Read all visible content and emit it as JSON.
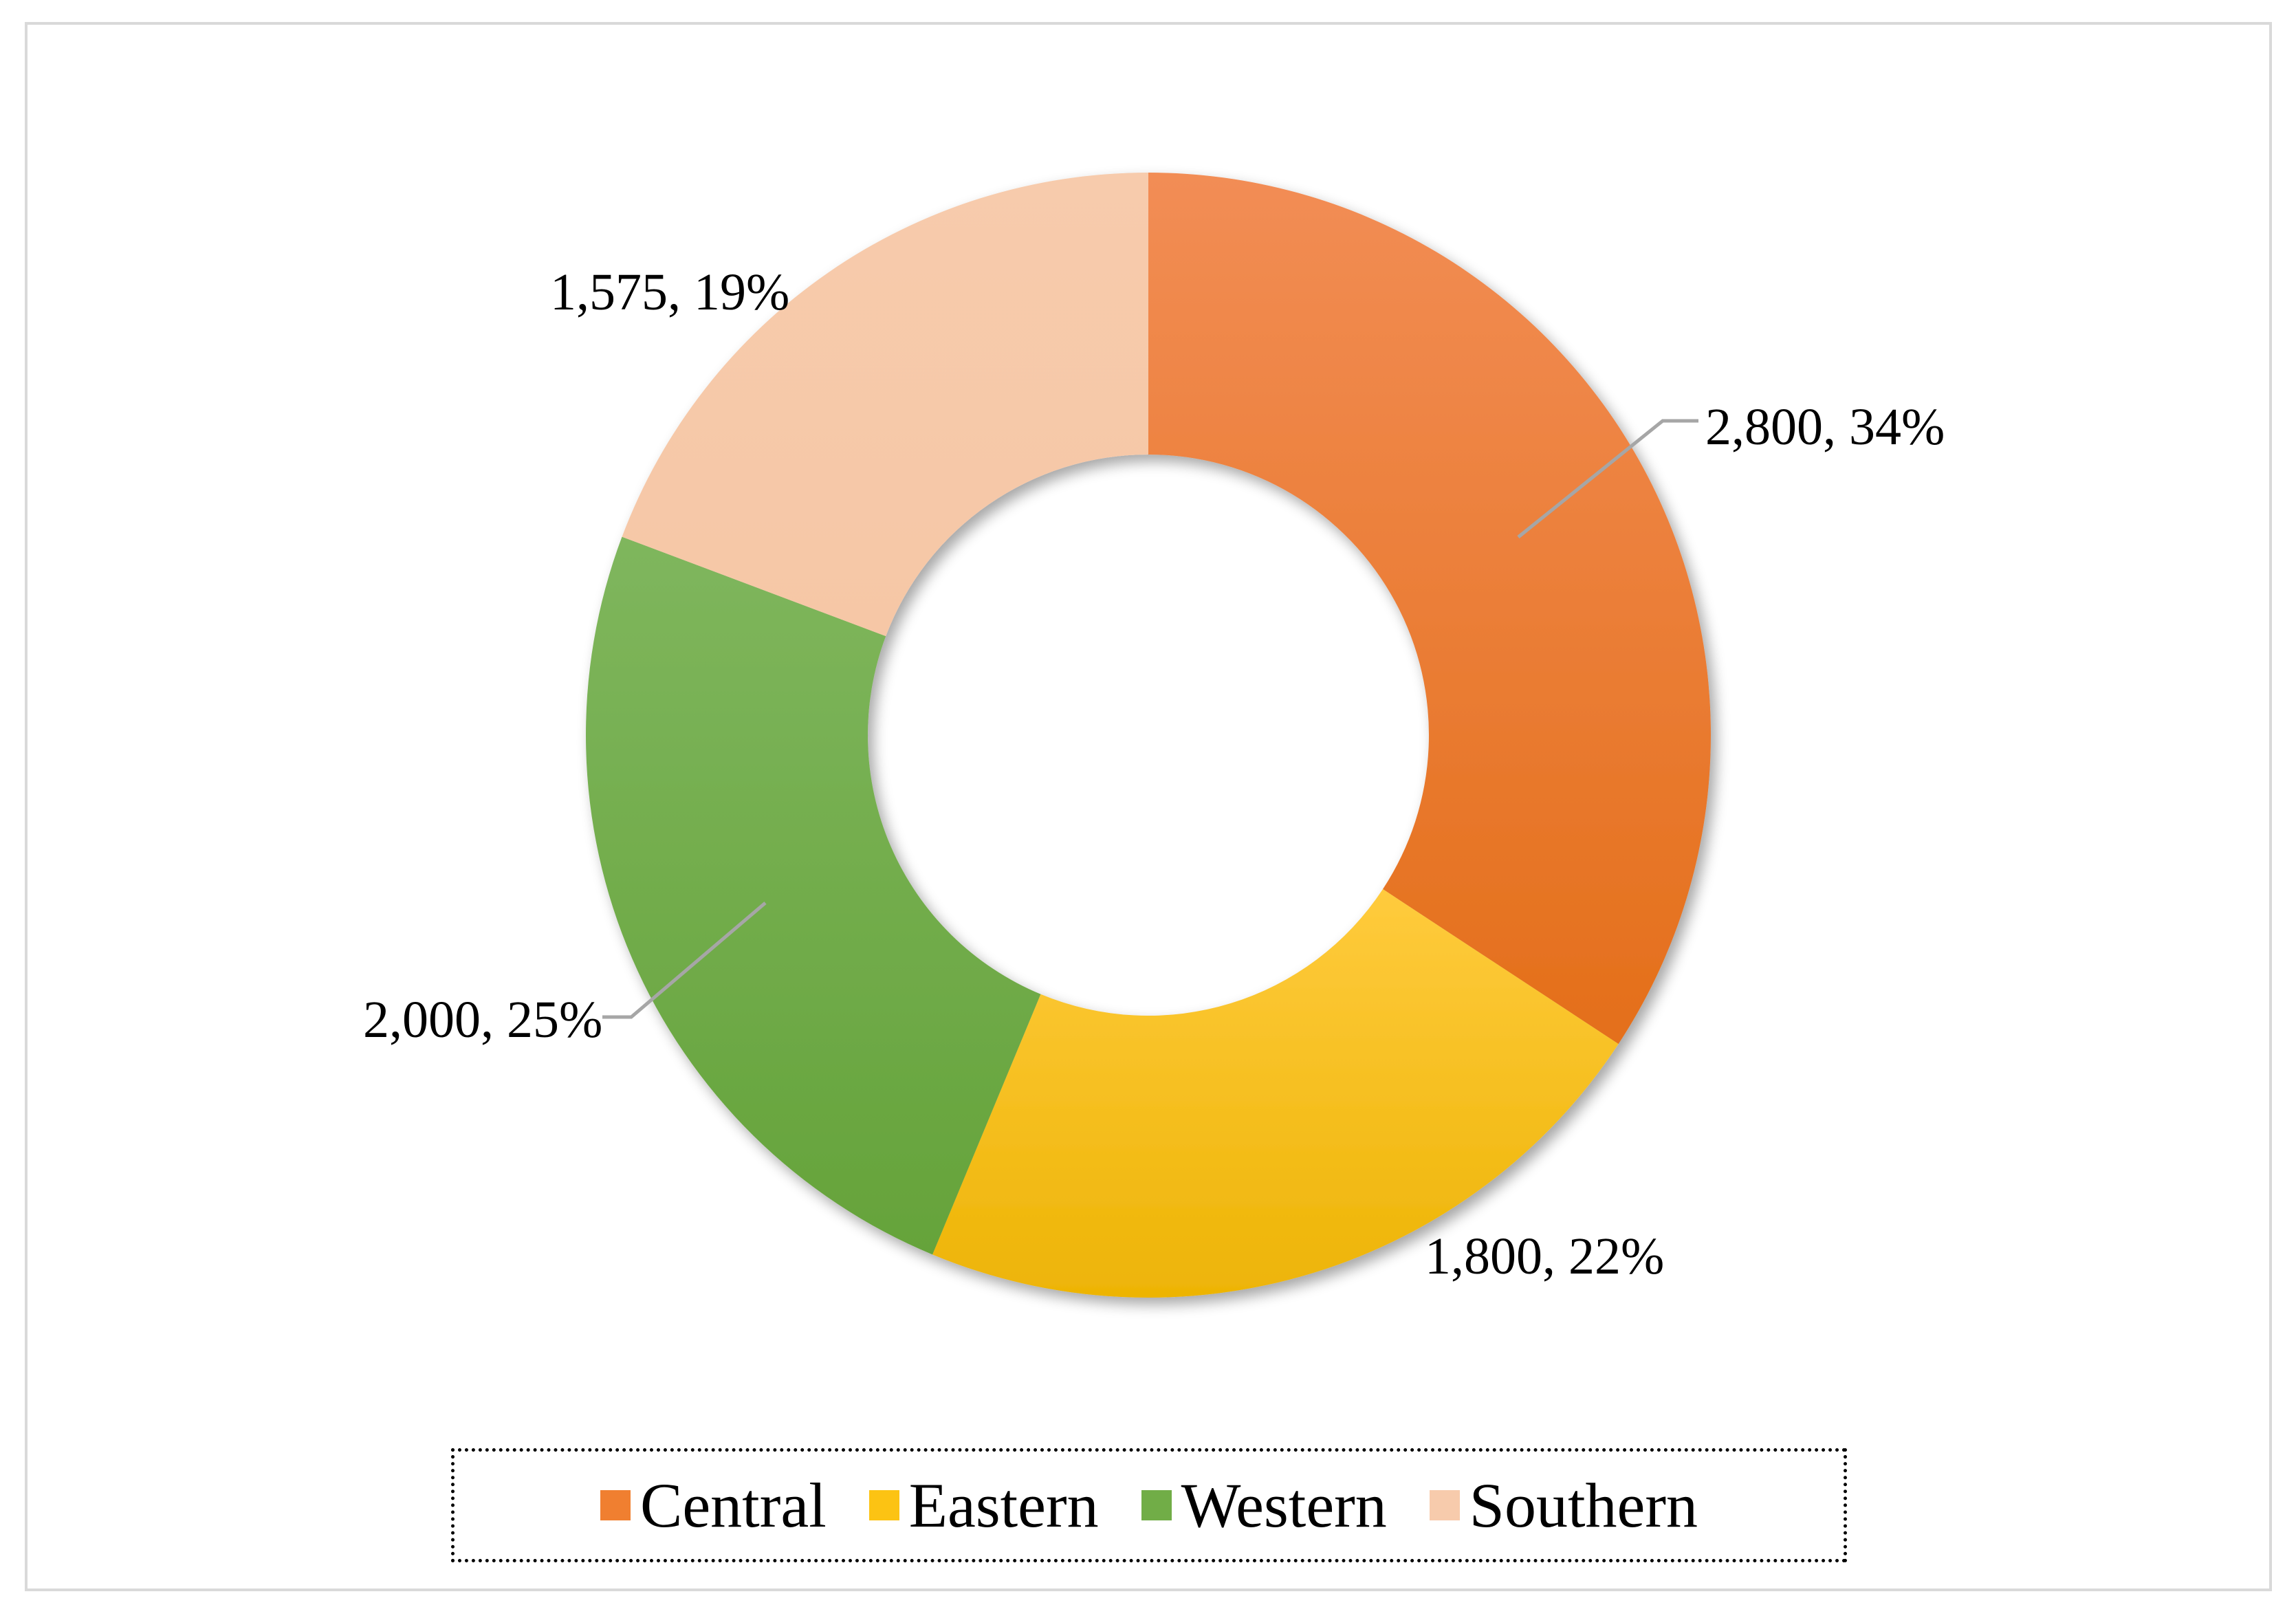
{
  "chart_data": {
    "type": "pie",
    "donut": true,
    "categories": [
      "Central",
      "Eastern",
      "Western",
      "Southern"
    ],
    "values": [
      2800,
      1800,
      2000,
      1575
    ],
    "percentages": [
      34,
      22,
      25,
      19
    ],
    "data_labels": [
      "2,800, 34%",
      "1,800, 22%",
      "2,000, 25%",
      "1,575, 19%"
    ],
    "colors": [
      "#f07f30",
      "#fcc313",
      "#71ad47",
      "#f7cbac"
    ],
    "legend_position": "bottom",
    "start_angle": "12 o'clock",
    "direction": "clockwise"
  },
  "legend": {
    "items": [
      {
        "label": "Central",
        "color": "#f07f30"
      },
      {
        "label": "Eastern",
        "color": "#fcc313"
      },
      {
        "label": "Western",
        "color": "#71ad47"
      },
      {
        "label": "Southern",
        "color": "#f7cbac"
      }
    ]
  }
}
